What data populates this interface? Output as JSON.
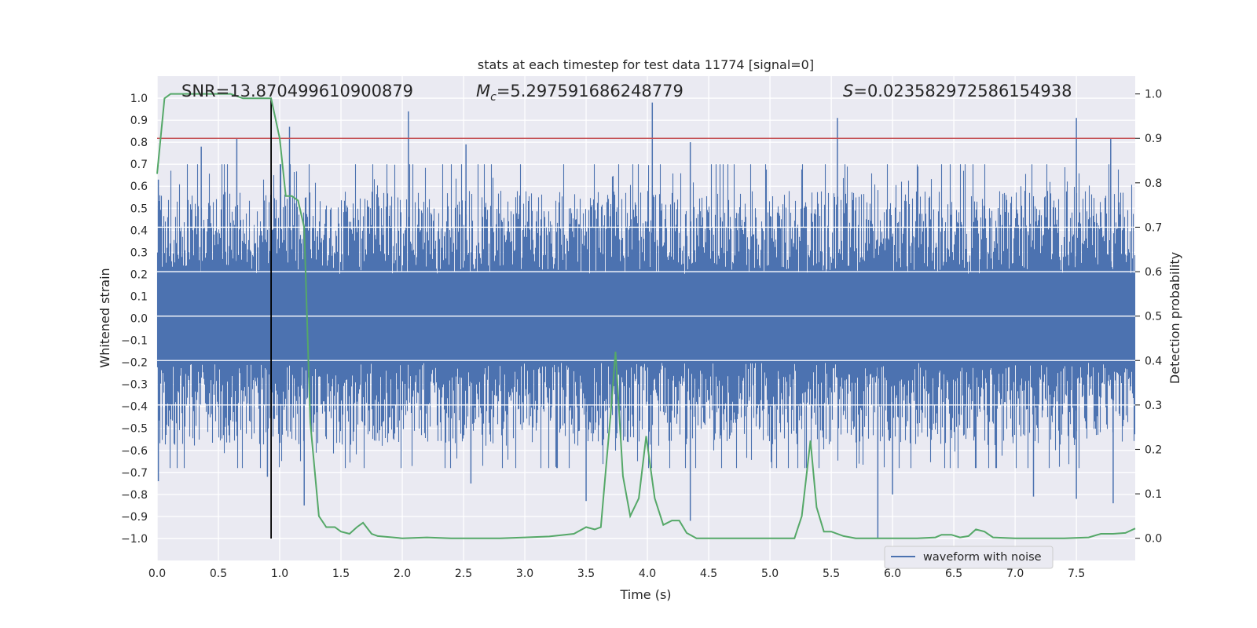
{
  "chart_data": {
    "type": "line",
    "title": "stats at each timestep for test data 11774 [signal=0]",
    "xlabel": "Time (s)",
    "ylabel_left": "Whitened strain",
    "ylabel_right": "Detection probability",
    "xlim": [
      0.0,
      7.98
    ],
    "ylim_left": [
      -1.1,
      1.1
    ],
    "ylim_right": [
      -0.05,
      1.04
    ],
    "x_ticks": [
      "0.0",
      "0.5",
      "1.0",
      "1.5",
      "2.0",
      "2.5",
      "3.0",
      "3.5",
      "4.0",
      "4.5",
      "5.0",
      "5.5",
      "6.0",
      "6.5",
      "7.0",
      "7.5"
    ],
    "y_left_ticks": [
      "1.0",
      "0.9",
      "0.8",
      "0.7",
      "0.6",
      "0.5",
      "0.4",
      "0.3",
      "0.2",
      "0.1",
      "0.0",
      "−0.1",
      "−0.2",
      "−0.3",
      "−0.4",
      "−0.5",
      "−0.6",
      "−0.7",
      "−0.8",
      "−0.9",
      "−1.0"
    ],
    "y_right_ticks": [
      "0.0",
      "0.1",
      "0.2",
      "0.3",
      "0.4",
      "0.5",
      "0.6",
      "0.7",
      "0.8",
      "0.9",
      "1.0"
    ],
    "grid": true,
    "legend_position": "lower-right",
    "annotations": {
      "snr": "SNR=13.870499610900879",
      "mc_symbol": "M",
      "mc_subscript": "c",
      "mc_value": "=5.297591686248779",
      "s_symbol": "S",
      "s_value": "=0.023582972586154938"
    },
    "threshold": {
      "value": 0.9,
      "axis": "right",
      "color": "#c44e52"
    },
    "marker_line": {
      "x": 0.93,
      "y_range": [
        -1.0,
        1.0
      ],
      "color": "#000000"
    },
    "series": [
      {
        "name": "waveform with noise",
        "axis": "left",
        "color": "#4c72b0",
        "style": "dense-noise",
        "envelope_typical": 0.45,
        "spikes_positive": [
          [
            0.01,
            0.63
          ],
          [
            0.36,
            0.78
          ],
          [
            0.65,
            0.82
          ],
          [
            1.08,
            0.87
          ],
          [
            2.05,
            0.94
          ],
          [
            2.52,
            0.79
          ],
          [
            4.04,
            0.98
          ],
          [
            4.35,
            0.8
          ],
          [
            5.55,
            0.91
          ],
          [
            7.5,
            0.91
          ],
          [
            7.78,
            0.82
          ]
        ],
        "spikes_negative": [
          [
            0.01,
            -0.74
          ],
          [
            0.9,
            -0.72
          ],
          [
            1.2,
            -0.85
          ],
          [
            2.56,
            -0.75
          ],
          [
            3.5,
            -0.83
          ],
          [
            4.35,
            -0.92
          ],
          [
            5.88,
            -1.0
          ],
          [
            6.0,
            -0.8
          ],
          [
            7.15,
            -0.81
          ],
          [
            7.5,
            -0.82
          ],
          [
            7.8,
            -0.84
          ]
        ]
      },
      {
        "name": "detection probability",
        "axis": "right",
        "color": "#55a868",
        "x": [
          0.0,
          0.06,
          0.11,
          0.2,
          0.4,
          0.6,
          0.7,
          0.8,
          0.9,
          0.93,
          1.0,
          1.05,
          1.1,
          1.15,
          1.2,
          1.25,
          1.32,
          1.38,
          1.45,
          1.5,
          1.57,
          1.63,
          1.68,
          1.75,
          1.8,
          2.0,
          2.2,
          2.4,
          2.6,
          2.8,
          3.0,
          3.2,
          3.4,
          3.5,
          3.57,
          3.62,
          3.7,
          3.74,
          3.8,
          3.86,
          3.93,
          3.99,
          4.06,
          4.13,
          4.2,
          4.26,
          4.32,
          4.4,
          4.6,
          4.8,
          5.0,
          5.2,
          5.26,
          5.33,
          5.38,
          5.44,
          5.5,
          5.6,
          5.7,
          5.8,
          6.0,
          6.2,
          6.35,
          6.4,
          6.48,
          6.55,
          6.62,
          6.68,
          6.75,
          6.82,
          7.0,
          7.2,
          7.4,
          7.6,
          7.7,
          7.8,
          7.9,
          7.98
        ],
        "y": [
          0.82,
          0.99,
          1.0,
          1.0,
          1.0,
          1.0,
          0.99,
          0.99,
          0.99,
          0.99,
          0.9,
          0.77,
          0.77,
          0.76,
          0.7,
          0.26,
          0.05,
          0.025,
          0.025,
          0.015,
          0.01,
          0.025,
          0.035,
          0.01,
          0.005,
          0.0,
          0.002,
          0.0,
          0.0,
          0.0,
          0.002,
          0.004,
          0.01,
          0.025,
          0.02,
          0.025,
          0.28,
          0.42,
          0.14,
          0.05,
          0.09,
          0.23,
          0.09,
          0.03,
          0.04,
          0.04,
          0.012,
          0.0,
          0.0,
          0.0,
          0.0,
          0.0,
          0.05,
          0.22,
          0.07,
          0.015,
          0.015,
          0.005,
          0.0,
          0.0,
          0.0,
          0.0,
          0.002,
          0.008,
          0.008,
          0.002,
          0.005,
          0.02,
          0.015,
          0.002,
          0.0,
          0.0,
          0.0,
          0.002,
          0.01,
          0.01,
          0.012,
          0.022
        ]
      }
    ]
  }
}
